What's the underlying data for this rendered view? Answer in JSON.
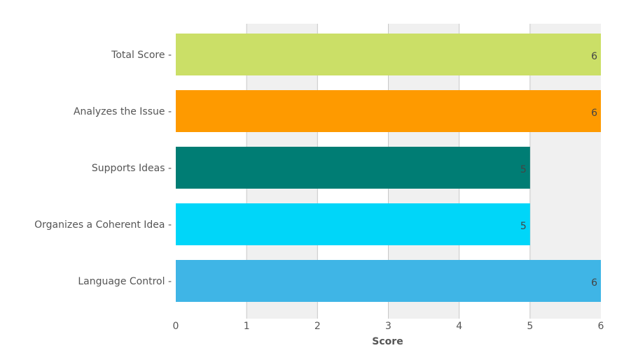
{
  "chart_data": {
    "type": "bar",
    "orientation": "horizontal",
    "categories": [
      "Total Score",
      "Analyzes the Issue",
      "Supports Ideas",
      "Organizes a Coherent Idea",
      "Language Control"
    ],
    "values": [
      6,
      6,
      5,
      5,
      6
    ],
    "value_labels": [
      "6",
      "6",
      "5",
      "5",
      "6"
    ],
    "colors": [
      "#cbdf67",
      "#fe9a00",
      "#007d74",
      "#00d6f9",
      "#3fb5e6"
    ],
    "xlabel": "Score",
    "ylabel": "",
    "xlim": [
      0,
      6
    ],
    "xticks": [
      "0",
      "1",
      "2",
      "3",
      "4",
      "5",
      "6"
    ],
    "grid": true,
    "alternating_bands": true
  }
}
